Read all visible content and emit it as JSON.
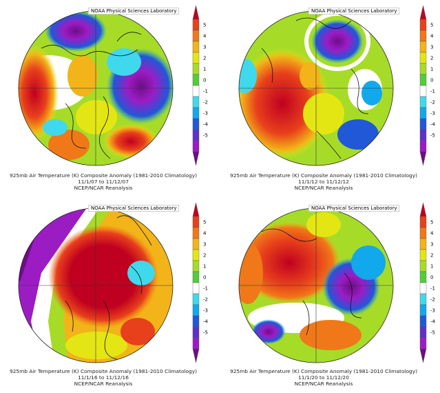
{
  "panels": [
    {
      "credit": "NOAA Physical Sciences Laboratory",
      "caption_line1": "925mb Air Temperature (K) Composite Anomaly (1981-2010 Climatology)",
      "caption_line2": "11/1/07  to 11/12/07",
      "caption_line3": "NCEP/NCAR Reanalysis"
    },
    {
      "credit": "NOAA Physical Sciences Laboratory",
      "caption_line1": "925mb Air Temperature (K) Composite Anomaly (1981-2010 Climatology)",
      "caption_line2": "11/1/12  to 11/12/12",
      "caption_line3": "NCEP/NCAR Reanalysis"
    },
    {
      "credit": "NOAA Physical Sciences Laboratory",
      "caption_line1": "925mb Air Temperature (K) Composite Anomaly (1981-2010 Climatology)",
      "caption_line2": "11/1/16  to 11/12/16",
      "caption_line3": "NCEP/NCAR Reanalysis"
    },
    {
      "credit": "NOAA Physical Sciences Laboratory",
      "caption_line1": "925mb Air Temperature (K) Composite Anomaly (1981-2010 Climatology)",
      "caption_line2": "11/1/20  to 11/12/20",
      "caption_line3": "NCEP/NCAR Reanalysis"
    }
  ],
  "chart_data": {
    "type": "heatmap",
    "projection": "north-polar-stereographic",
    "units": "K",
    "colorbar": {
      "ticks": [
        5,
        4,
        3,
        2,
        1,
        0,
        -1,
        -2,
        -3,
        -4,
        -5
      ],
      "tick_labels": [
        "5",
        "4",
        "3",
        "2",
        "1",
        "0",
        "-1",
        "-2",
        "-3",
        "-4",
        "-5"
      ],
      "colors": [
        "#c00020",
        "#e8401c",
        "#f07818",
        "#f2b418",
        "#e4e614",
        "#a6dc28",
        "#54cc3c",
        "#ffffff",
        "#40d8ec",
        "#12a8ec",
        "#2058d8",
        "#6030c8",
        "#9c1cc4",
        "#6c0e88"
      ]
    },
    "maps": [
      {
        "period": "11/1/07 to 11/12/07",
        "dominant_anomaly": "mixed; strong negative over Eurasia/north Atlantic, positive over Alaska/western Canada"
      },
      {
        "period": "11/1/12 to 11/12/12",
        "dominant_anomaly": "positive over central/eastern Arctic & Siberia, negative over north Atlantic sector"
      },
      {
        "period": "11/1/16 to 11/12/16",
        "dominant_anomaly": "strong positive over most of Arctic and North America, negative over far east Asia"
      },
      {
        "period": "11/1/20 to 11/12/20",
        "dominant_anomaly": "positive over Siberia & Arctic, negative over Scandinavia/Greenland sector"
      }
    ]
  }
}
